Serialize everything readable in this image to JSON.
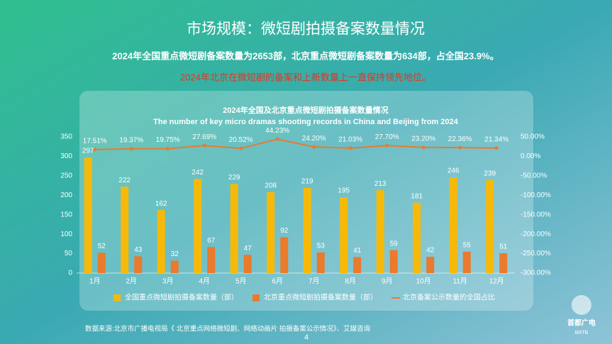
{
  "title": "市场规模：微短剧拍摄备案数量情况",
  "summary": "2024年全国重点微短剧备案数量为2653部，北京重点微短剧备案数量为634部，占全国23.9%。",
  "highlight": "2024年北京在微短剧的备案和上新数量上一直保持领先地位。",
  "chart_data": {
    "type": "bar",
    "title": "2024年全国及北京重点微短剧拍摄备案数量情况",
    "subtitle": "The number of key micro dramas shooting records in China and Beijing from 2024",
    "categories": [
      "1月",
      "2月",
      "3月",
      "4月",
      "5月",
      "6月",
      "7月",
      "8月",
      "9月",
      "10月",
      "11月",
      "12月"
    ],
    "series": [
      {
        "name": "全国重点微短剧拍摄备案数量（部）",
        "color": "#f6b90a",
        "values": [
          297,
          222,
          162,
          242,
          229,
          208,
          219,
          195,
          213,
          181,
          246,
          239
        ]
      },
      {
        "name": "北京重点微短剧拍摄备案数量（部）",
        "color": "#ea7a2c",
        "values": [
          52,
          43,
          32,
          67,
          47,
          92,
          53,
          41,
          59,
          42,
          55,
          51
        ]
      },
      {
        "name": "北京备案公示数量的全国占比",
        "color": "#ea7a2c",
        "type": "line",
        "axis": "y2",
        "values": [
          17.51,
          19.37,
          19.75,
          27.69,
          20.52,
          44.23,
          24.2,
          21.03,
          27.7,
          23.2,
          22.36,
          21.34
        ],
        "value_labels": [
          "17.51%",
          "19.37%",
          "19.75%",
          "27.69%",
          "20.52%",
          "44.23%",
          "24.20%",
          "21.03%",
          "27.70%",
          "23.20%",
          "22.36%",
          "21.34%"
        ]
      }
    ],
    "ylim": [
      0,
      350
    ],
    "yticks": [
      0,
      50,
      100,
      150,
      200,
      250,
      300,
      350
    ],
    "y2lim": [
      -300,
      50
    ],
    "y2ticks": [
      {
        "value": -300,
        "label": "-300.00%"
      },
      {
        "value": -250,
        "label": "-250.00%"
      },
      {
        "value": -200,
        "label": "-200.00%"
      },
      {
        "value": -150,
        "label": "-150.00%"
      },
      {
        "value": -100,
        "label": "-100.00%"
      },
      {
        "value": -50,
        "label": "-50.00%"
      },
      {
        "value": 0,
        "label": "0.00%"
      },
      {
        "value": 50,
        "label": "50.00%"
      }
    ],
    "legend": "bottom"
  },
  "source": "数据来源:北京市广播电视局《 北京重点网络微短剧、网络动画片 拍摄备案公示情况》、艾媒咨询",
  "page": "4",
  "logo": {
    "name": "首都广电",
    "abbr": "BRTB"
  }
}
